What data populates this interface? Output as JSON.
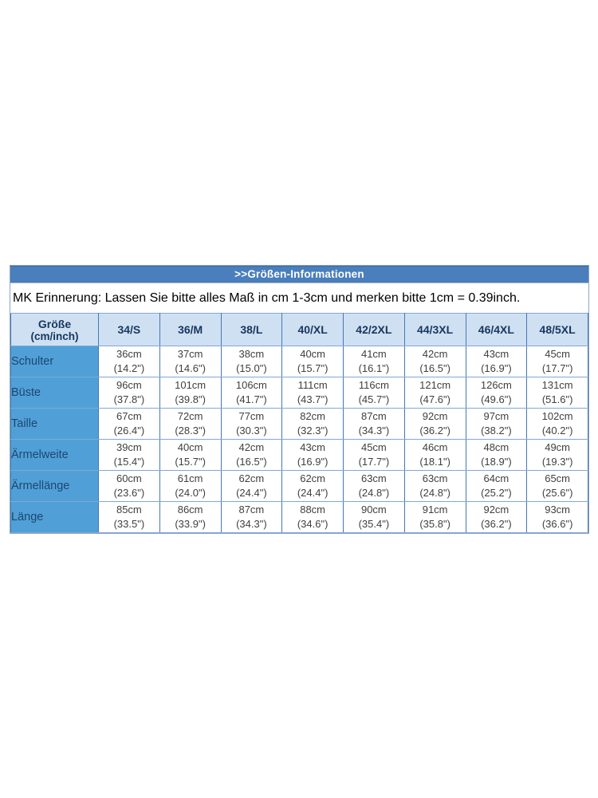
{
  "title_bar": ">>Größen-Informationen",
  "note": "MK Erinnerung: Lassen Sie bitte alles Maß in cm 1-3cm und merken bitte 1cm = 0.39inch.",
  "colors": {
    "title_bar_bg": "#4a7ebc",
    "header_bg": "#cfe0f3",
    "label_bg": "#50a0d7",
    "grid_border": "#4878b0",
    "header_text": "#17375e"
  },
  "table": {
    "corner_header": {
      "line1": "Größe",
      "line2": "(cm/inch)"
    },
    "size_headers": [
      "34/S",
      "36/M",
      "38/L",
      "40/XL",
      "42/2XL",
      "44/3XL",
      "46/4XL",
      "48/5XL"
    ],
    "rows": [
      {
        "label": "Schulter",
        "cells": [
          {
            "cm": "36cm",
            "inch": "(14.2\")"
          },
          {
            "cm": "37cm",
            "inch": "(14.6\")"
          },
          {
            "cm": "38cm",
            "inch": "(15.0\")"
          },
          {
            "cm": "40cm",
            "inch": "(15.7\")"
          },
          {
            "cm": "41cm",
            "inch": "(16.1\")"
          },
          {
            "cm": "42cm",
            "inch": "(16.5\")"
          },
          {
            "cm": "43cm",
            "inch": "(16.9\")"
          },
          {
            "cm": "45cm",
            "inch": "(17.7\")"
          }
        ]
      },
      {
        "label": "Büste",
        "cells": [
          {
            "cm": "96cm",
            "inch": "(37.8\")"
          },
          {
            "cm": "101cm",
            "inch": "(39.8\")"
          },
          {
            "cm": "106cm",
            "inch": "(41.7\")"
          },
          {
            "cm": "111cm",
            "inch": "(43.7\")"
          },
          {
            "cm": "116cm",
            "inch": "(45.7\")"
          },
          {
            "cm": "121cm",
            "inch": "(47.6\")"
          },
          {
            "cm": "126cm",
            "inch": "(49.6\")"
          },
          {
            "cm": "131cm",
            "inch": "(51.6\")"
          }
        ]
      },
      {
        "label": "Taille",
        "cells": [
          {
            "cm": "67cm",
            "inch": "(26.4\")"
          },
          {
            "cm": "72cm",
            "inch": "(28.3\")"
          },
          {
            "cm": "77cm",
            "inch": "(30.3\")"
          },
          {
            "cm": "82cm",
            "inch": "(32.3\")"
          },
          {
            "cm": "87cm",
            "inch": "(34.3\")"
          },
          {
            "cm": "92cm",
            "inch": "(36.2\")"
          },
          {
            "cm": "97cm",
            "inch": "(38.2\")"
          },
          {
            "cm": "102cm",
            "inch": "(40.2\")"
          }
        ]
      },
      {
        "label": "Ärmelweite",
        "cells": [
          {
            "cm": "39cm",
            "inch": "(15.4\")"
          },
          {
            "cm": "40cm",
            "inch": "(15.7\")"
          },
          {
            "cm": "42cm",
            "inch": "(16.5\")"
          },
          {
            "cm": "43cm",
            "inch": "(16.9\")"
          },
          {
            "cm": "45cm",
            "inch": "(17.7\")"
          },
          {
            "cm": "46cm",
            "inch": "(18.1\")"
          },
          {
            "cm": "48cm",
            "inch": "(18.9\")"
          },
          {
            "cm": "49cm",
            "inch": "(19.3\")"
          }
        ]
      },
      {
        "label": "Ärmellänge",
        "cells": [
          {
            "cm": "60cm",
            "inch": "(23.6\")"
          },
          {
            "cm": "61cm",
            "inch": "(24.0\")"
          },
          {
            "cm": "62cm",
            "inch": "(24.4\")"
          },
          {
            "cm": "62cm",
            "inch": "(24.4\")"
          },
          {
            "cm": "63cm",
            "inch": "(24.8\")"
          },
          {
            "cm": "63cm",
            "inch": "(24.8\")"
          },
          {
            "cm": "64cm",
            "inch": "(25.2\")"
          },
          {
            "cm": "65cm",
            "inch": "(25.6\")"
          }
        ]
      },
      {
        "label": "Länge",
        "cells": [
          {
            "cm": "85cm",
            "inch": "(33.5\")"
          },
          {
            "cm": "86cm",
            "inch": "(33.9\")"
          },
          {
            "cm": "87cm",
            "inch": "(34.3\")"
          },
          {
            "cm": "88cm",
            "inch": "(34.6\")"
          },
          {
            "cm": "90cm",
            "inch": "(35.4\")"
          },
          {
            "cm": "91cm",
            "inch": "(35.8\")"
          },
          {
            "cm": "92cm",
            "inch": "(36.2\")"
          },
          {
            "cm": "93cm",
            "inch": "(36.6\")"
          }
        ]
      }
    ]
  }
}
